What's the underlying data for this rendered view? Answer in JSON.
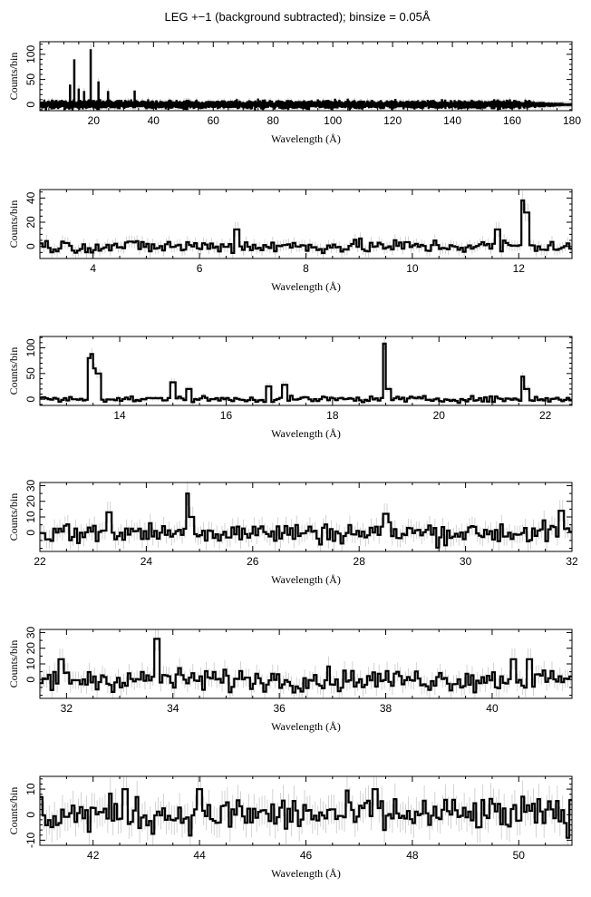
{
  "title": "LEG +−1 (background subtracted); binsize = 0.05Å",
  "chart_data": [
    {
      "type": "line",
      "style": "step",
      "xlabel": "Wavelength (Å)",
      "ylabel": "Counts/bin",
      "xlim": [
        2,
        180
      ],
      "ylim": [
        -12,
        125
      ],
      "xticks": [
        20,
        40,
        60,
        80,
        100,
        120,
        140,
        160,
        180
      ],
      "yticks": [
        0,
        50,
        100
      ],
      "noise": 5,
      "noise_decay_start": 160,
      "noise_decay_end": 180,
      "peaks": [
        [
          12.1,
          38
        ],
        [
          13.5,
          88
        ],
        [
          15.0,
          30
        ],
        [
          16.8,
          25
        ],
        [
          19.0,
          108
        ],
        [
          21.6,
          44
        ],
        [
          24.8,
          25
        ],
        [
          33.7,
          26
        ]
      ]
    },
    {
      "type": "line",
      "style": "step",
      "xlabel": "Wavelength (Å)",
      "ylabel": "Counts/bin",
      "xlim": [
        3,
        13
      ],
      "ylim": [
        -10,
        47
      ],
      "xticks": [
        4,
        6,
        8,
        10,
        12
      ],
      "yticks": [
        0,
        20,
        40
      ],
      "noise": 4,
      "peaks": [
        [
          6.7,
          14
        ],
        [
          11.6,
          14
        ],
        [
          12.1,
          38
        ],
        [
          12.15,
          28
        ]
      ]
    },
    {
      "type": "line",
      "style": "step",
      "xlabel": "Wavelength (Å)",
      "ylabel": "Counts/bin",
      "xlim": [
        12.5,
        22.5
      ],
      "ylim": [
        -12,
        122
      ],
      "xticks": [
        14,
        16,
        18,
        20,
        22
      ],
      "yticks": [
        0,
        50,
        100
      ],
      "noise": 4,
      "peaks": [
        [
          13.45,
          80
        ],
        [
          13.5,
          88
        ],
        [
          13.55,
          60
        ],
        [
          13.6,
          50
        ],
        [
          15.0,
          33
        ],
        [
          15.3,
          20
        ],
        [
          16.8,
          25
        ],
        [
          17.1,
          28
        ],
        [
          19.0,
          108
        ],
        [
          19.05,
          20
        ],
        [
          21.6,
          44
        ],
        [
          21.65,
          20
        ]
      ]
    },
    {
      "type": "line",
      "style": "step",
      "xlabel": "Wavelength (Å)",
      "ylabel": "Counts/bin",
      "xlim": [
        22,
        32
      ],
      "ylim": [
        -12,
        32
      ],
      "xticks": [
        22,
        24,
        26,
        28,
        30,
        32
      ],
      "yticks": [
        0,
        10,
        20,
        30
      ],
      "noise": 5,
      "peaks": [
        [
          23.3,
          13
        ],
        [
          24.8,
          25
        ],
        [
          24.85,
          10
        ],
        [
          28.5,
          12
        ],
        [
          31.8,
          14
        ]
      ]
    },
    {
      "type": "line",
      "style": "step",
      "xlabel": "Wavelength (Å)",
      "ylabel": "Counts/bin",
      "xlim": [
        31.5,
        41.5
      ],
      "ylim": [
        -12,
        32
      ],
      "xticks": [
        32,
        34,
        36,
        38,
        40
      ],
      "yticks": [
        0,
        10,
        20,
        30
      ],
      "noise": 5,
      "peaks": [
        [
          31.9,
          13
        ],
        [
          33.7,
          26
        ],
        [
          40.4,
          13
        ],
        [
          40.7,
          13
        ]
      ]
    },
    {
      "type": "line",
      "style": "step",
      "xlabel": "Wavelength (Å)",
      "ylabel": "Counts/bin",
      "xlim": [
        41,
        51
      ],
      "ylim": [
        -12,
        15
      ],
      "xticks": [
        42,
        44,
        46,
        48,
        50
      ],
      "yticks": [
        -10,
        0,
        10
      ],
      "noise": 5,
      "peaks": [
        [
          42.6,
          10
        ],
        [
          44.0,
          10
        ],
        [
          47.3,
          10
        ]
      ]
    }
  ]
}
